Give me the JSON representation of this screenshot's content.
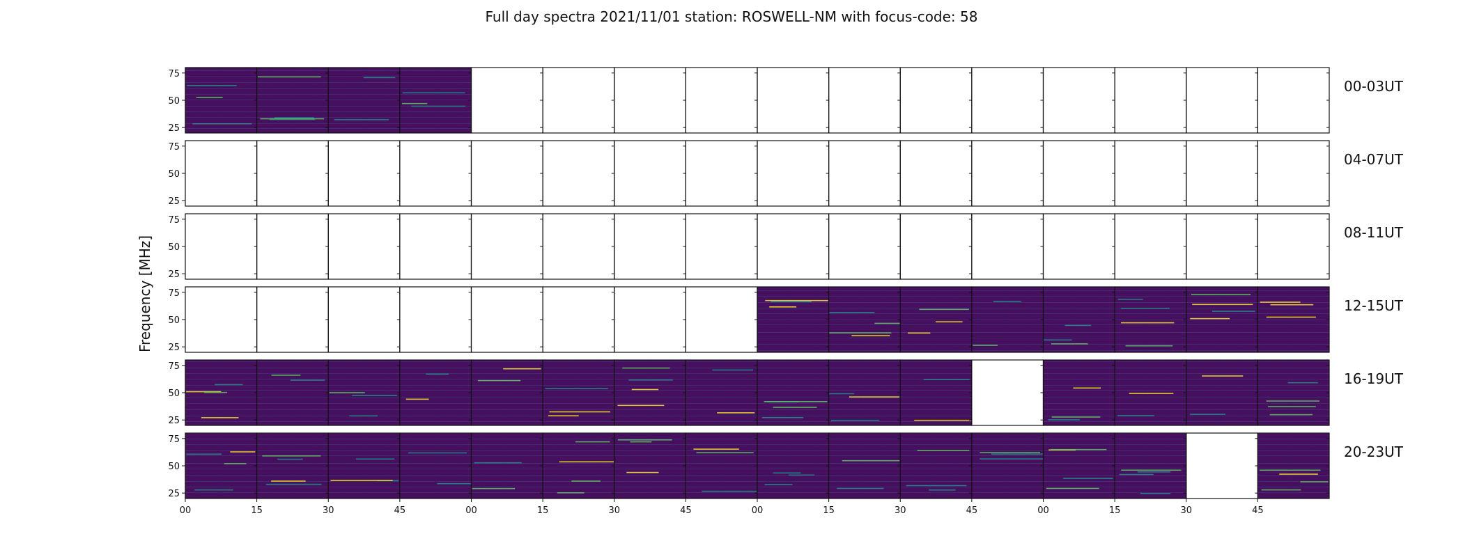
{
  "chart_data": {
    "type": "heatmap",
    "title": "Full day spectra 2021/11/01 station: ROSWELL-NM with focus-code: 58",
    "ylabel": "Frequency [MHz]",
    "xlabel": "",
    "y_ticks": [
      25,
      50,
      75
    ],
    "ylim": [
      20,
      80
    ],
    "x_ticks": [
      "00",
      "15",
      "30",
      "45",
      "00",
      "15",
      "30",
      "45",
      "00",
      "15",
      "30",
      "45",
      "00",
      "15",
      "30",
      "45"
    ],
    "grid": false,
    "colormap": [
      "#440154",
      "#3b528b",
      "#21918c",
      "#5ec962",
      "#fde725"
    ],
    "rows": [
      {
        "label": "00-03UT",
        "panels": [
          1,
          1,
          1,
          1,
          0,
          0,
          0,
          0,
          0,
          0,
          0,
          0,
          0,
          0,
          0,
          0
        ]
      },
      {
        "label": "04-07UT",
        "panels": [
          0,
          0,
          0,
          0,
          0,
          0,
          0,
          0,
          0,
          0,
          0,
          0,
          0,
          0,
          0,
          0
        ]
      },
      {
        "label": "08-11UT",
        "panels": [
          0,
          0,
          0,
          0,
          0,
          0,
          0,
          0,
          0,
          0,
          0,
          0,
          0,
          0,
          0,
          0
        ]
      },
      {
        "label": "12-15UT",
        "panels": [
          0,
          0,
          0,
          0,
          0,
          0,
          0,
          0,
          1,
          1,
          1,
          1,
          1,
          1,
          1,
          1
        ]
      },
      {
        "label": "16-19UT",
        "panels": [
          1,
          1,
          1,
          1,
          1,
          1,
          1,
          1,
          1,
          1,
          1,
          0,
          1,
          1,
          1,
          1
        ]
      },
      {
        "label": "20-23UT",
        "panels": [
          1,
          1,
          1,
          1,
          1,
          1,
          1,
          1,
          1,
          1,
          1,
          1,
          1,
          1,
          0,
          1
        ]
      }
    ]
  }
}
